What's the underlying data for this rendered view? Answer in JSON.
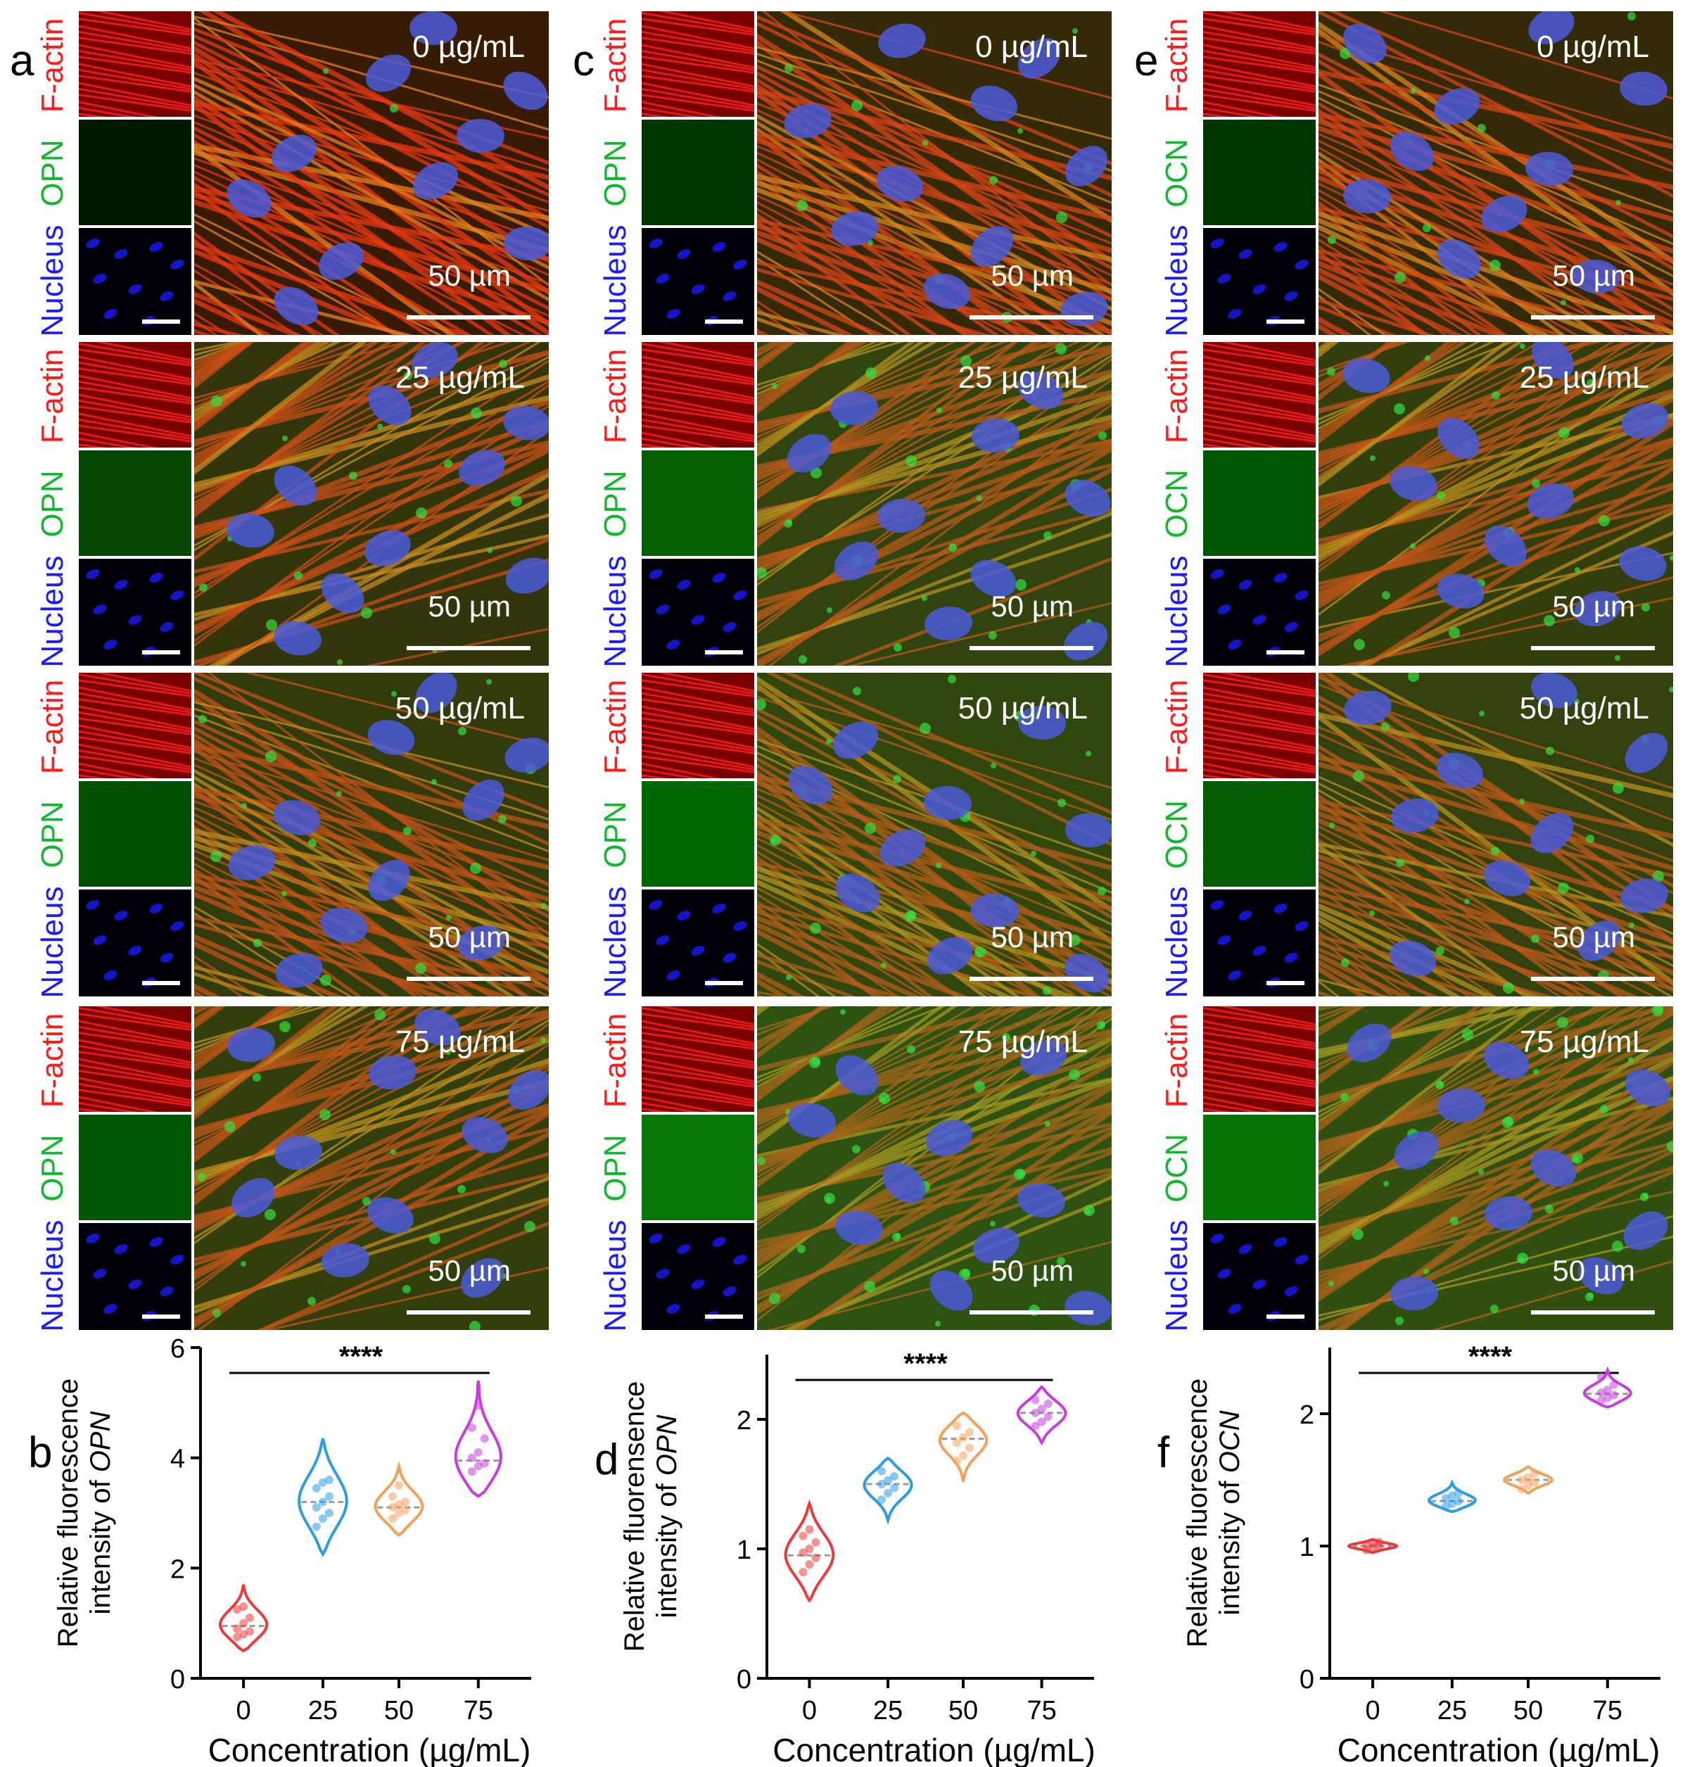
{
  "colors": {
    "factin": "#ff1a1a",
    "protein": "#11b82e",
    "nucleus": "#1a1aff",
    "series": [
      "#ea3a3a",
      "#2e9be8",
      "#f5a05a",
      "#c83ce0"
    ]
  },
  "columns": [
    {
      "panel_letter": "a",
      "stain_labels": {
        "factin": "F-actin",
        "protein": "OPN",
        "nucleus": "Nucleus"
      },
      "rows": [
        {
          "concentration": "0 µg/mL",
          "scale": "50 µm",
          "green": 0.05
        },
        {
          "concentration": "25 µg/mL",
          "scale": "50 µm",
          "green": 0.45
        },
        {
          "concentration": "50 µg/mL",
          "scale": "50 µm",
          "green": 0.55
        },
        {
          "concentration": "75 µg/mL",
          "scale": "50 µm",
          "green": 0.6
        }
      ]
    },
    {
      "panel_letter": "c",
      "stain_labels": {
        "factin": "F-actin",
        "protein": "OPN",
        "nucleus": "Nucleus"
      },
      "rows": [
        {
          "concentration": "0 µg/mL",
          "scale": "50 µm",
          "green": 0.3
        },
        {
          "concentration": "25 µg/mL",
          "scale": "50 µm",
          "green": 0.7
        },
        {
          "concentration": "50 µg/mL",
          "scale": "50 µm",
          "green": 0.75
        },
        {
          "concentration": "75 µg/mL",
          "scale": "50 µm",
          "green": 0.9
        }
      ]
    },
    {
      "panel_letter": "e",
      "stain_labels": {
        "factin": "F-actin",
        "protein": "OCN",
        "nucleus": "Nucleus"
      },
      "rows": [
        {
          "concentration": "0 µg/mL",
          "scale": "50 µm",
          "green": 0.3
        },
        {
          "concentration": "25 µg/mL",
          "scale": "50 µm",
          "green": 0.6
        },
        {
          "concentration": "50 µg/mL",
          "scale": "50 µm",
          "green": 0.65
        },
        {
          "concentration": "75 µg/mL",
          "scale": "50 µm",
          "green": 0.85
        }
      ]
    }
  ],
  "chart_data": [
    {
      "type": "violin",
      "panel_letter": "b",
      "ylabel_line1": "Relative fluorescence",
      "ylabel_line2_prefix": "intensity of ",
      "ylabel_gene": "OPN",
      "xlabel": "Concentration (µg/mL)",
      "categories": [
        "0",
        "25",
        "50",
        "75"
      ],
      "ylim": [
        0,
        6
      ],
      "yticks": [
        0,
        2,
        4,
        6
      ],
      "significance": "****",
      "series": [
        {
          "name": "0",
          "values": [
            0.75,
            0.8,
            0.85,
            0.9,
            1.0,
            1.1,
            1.25,
            1.3
          ],
          "min": 0.5,
          "max": 1.7,
          "median": 0.95
        },
        {
          "name": "25",
          "values": [
            2.75,
            2.9,
            3.0,
            3.1,
            3.2,
            3.3,
            3.45,
            3.55,
            3.6
          ],
          "min": 2.25,
          "max": 4.35,
          "median": 3.2
        },
        {
          "name": "50",
          "values": [
            2.9,
            3.0,
            3.05,
            3.1,
            3.15,
            3.2,
            3.3,
            3.5
          ],
          "min": 2.6,
          "max": 3.85,
          "median": 3.1
        },
        {
          "name": "75",
          "values": [
            3.75,
            3.85,
            3.9,
            4.0,
            4.1,
            4.35,
            4.55,
            4.95
          ],
          "min": 3.3,
          "max": 5.4,
          "median": 3.95
        }
      ]
    },
    {
      "type": "violin",
      "panel_letter": "d",
      "ylabel_line1": "Relative fluorensence",
      "ylabel_line2_prefix": "intensity of ",
      "ylabel_gene": "OPN",
      "xlabel": "Concentration (µg/mL)",
      "categories": [
        "0",
        "25",
        "50",
        "75"
      ],
      "ylim": [
        0,
        2.5
      ],
      "yticks": [
        0,
        1,
        2
      ],
      "significance": "****",
      "series": [
        {
          "name": "0",
          "values": [
            0.82,
            0.88,
            0.93,
            0.97,
            1.0,
            1.05,
            1.1,
            1.15
          ],
          "min": 0.6,
          "max": 1.35,
          "median": 0.95
        },
        {
          "name": "25",
          "values": [
            1.38,
            1.43,
            1.47,
            1.5,
            1.53,
            1.56,
            1.6
          ],
          "min": 1.22,
          "max": 1.7,
          "median": 1.5
        },
        {
          "name": "50",
          "values": [
            1.68,
            1.72,
            1.78,
            1.82,
            1.86,
            1.9,
            1.95
          ],
          "min": 1.52,
          "max": 2.05,
          "median": 1.85
        },
        {
          "name": "75",
          "values": [
            1.95,
            1.98,
            2.02,
            2.05,
            2.08,
            2.12,
            2.15
          ],
          "min": 1.82,
          "max": 2.25,
          "median": 2.05
        }
      ]
    },
    {
      "type": "violin",
      "panel_letter": "f",
      "ylabel_line1": "Relative fluorescence",
      "ylabel_line2_prefix": "intensity of ",
      "ylabel_gene": "OCN",
      "xlabel": "Concentration (µg/mL)",
      "categories": [
        "0",
        "25",
        "50",
        "75"
      ],
      "ylim": [
        0,
        2.5
      ],
      "yticks": [
        0,
        1,
        2
      ],
      "significance": "****",
      "series": [
        {
          "name": "0",
          "values": [
            0.97,
            0.99,
            1.0,
            1.01,
            1.02,
            1.03
          ],
          "min": 0.95,
          "max": 1.05,
          "median": 1.0
        },
        {
          "name": "25",
          "values": [
            1.3,
            1.32,
            1.34,
            1.36,
            1.38,
            1.4
          ],
          "min": 1.26,
          "max": 1.48,
          "median": 1.34
        },
        {
          "name": "50",
          "values": [
            1.43,
            1.46,
            1.48,
            1.5,
            1.52,
            1.55
          ],
          "min": 1.4,
          "max": 1.6,
          "median": 1.5
        },
        {
          "name": "75",
          "values": [
            2.1,
            2.12,
            2.14,
            2.16,
            2.18,
            2.22,
            2.28
          ],
          "min": 2.05,
          "max": 2.33,
          "median": 2.15
        }
      ]
    }
  ]
}
